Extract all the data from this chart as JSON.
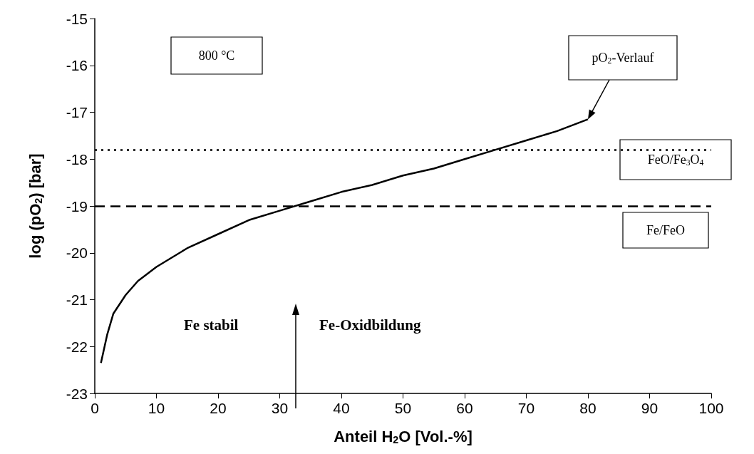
{
  "chart_data": {
    "type": "line",
    "xlabel": "Anteil H$_{2}$O [Vol.-%]",
    "ylabel": "log (pO$_{2}$) [bar]",
    "series": [
      {
        "color": "#000000",
        "x": [
          1,
          2,
          3,
          5,
          7,
          10,
          15,
          20,
          25,
          30,
          35,
          40,
          45,
          50,
          55,
          60,
          65,
          70,
          75,
          80
        ],
        "values": [
          -22.35,
          -21.75,
          -21.3,
          -20.9,
          -20.6,
          -20.3,
          -19.9,
          -19.6,
          -19.3,
          -19.1,
          -18.9,
          -18.7,
          -18.55,
          -18.35,
          -18.2,
          -18.0,
          -17.8,
          -17.6,
          -17.4,
          -17.15
        ]
      }
    ],
    "xlim": [
      0,
      100
    ],
    "xticks": [
      0,
      10,
      20,
      30,
      40,
      50,
      60,
      70,
      80,
      90,
      100
    ],
    "ylim": [
      -23,
      -15
    ],
    "yticks": [
      -23,
      -22,
      -21,
      -20,
      -19,
      -18,
      -17,
      -16,
      -15
    ],
    "ref_lines": [
      {
        "axis": "y",
        "value": -17.8,
        "label": "FeO/Fe$_{3}$O$_{4}$",
        "color": "#000000",
        "line_style": "dotted"
      },
      {
        "axis": "y",
        "value": -19,
        "label": "Fe/FeO",
        "color": "#000000",
        "line_style": "dashed"
      }
    ],
    "annotations": [
      "800 °C",
      {
        "text": "pO$_{2}$-Verlauf",
        "x": 80,
        "y": -17.15
      },
      "Fe stabil",
      "Fe-Oxidbildung"
    ],
    "marker": "none",
    "line_style": "solid"
  }
}
